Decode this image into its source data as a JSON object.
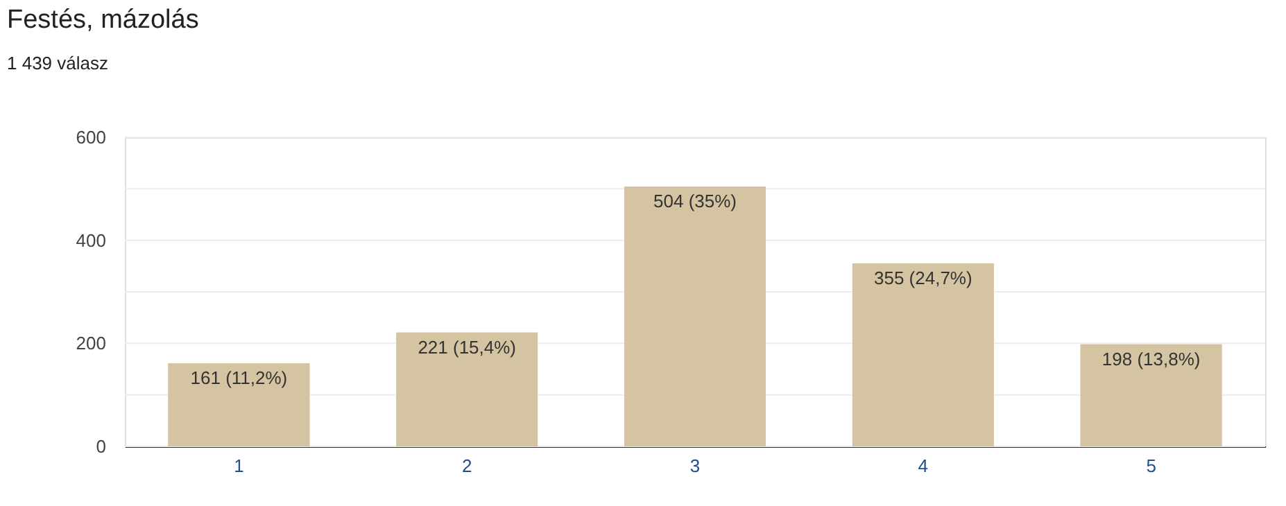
{
  "chart_data": {
    "type": "bar",
    "title": "Festés, mázolás",
    "subtitle": "1 439 válasz",
    "categories": [
      "1",
      "2",
      "3",
      "4",
      "5"
    ],
    "values": [
      161,
      221,
      504,
      355,
      198
    ],
    "value_labels": [
      "161 (11,2%)",
      "221 (15,4%)",
      "504 (35%)",
      "355 (24,7%)",
      "198 (13,8%)"
    ],
    "color": "#d5c4a1",
    "ylim": [
      0,
      600
    ],
    "yticks": [
      0,
      {
        "value": 100,
        "label": null
      },
      200,
      {
        "value": 300,
        "label": null
      },
      400,
      {
        "value": 500,
        "label": null
      },
      600
    ],
    "grid": "y",
    "legend": false
  }
}
